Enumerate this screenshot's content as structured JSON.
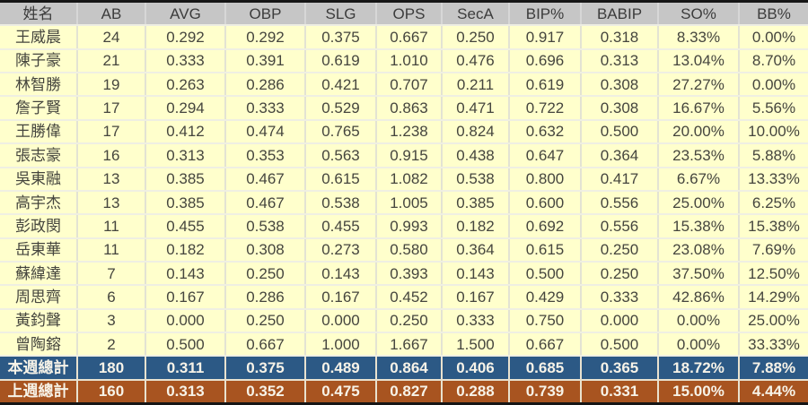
{
  "chart_data": {
    "type": "table",
    "columns": [
      "姓名",
      "AB",
      "AVG",
      "OBP",
      "SLG",
      "OPS",
      "SecA",
      "BIP%",
      "BABIP",
      "SO%",
      "BB%"
    ],
    "players": [
      {
        "name": "王威晨",
        "values": [
          "24",
          "0.292",
          "0.292",
          "0.375",
          "0.667",
          "0.250",
          "0.917",
          "0.318",
          "8.33%",
          "0.00%"
        ]
      },
      {
        "name": "陳子豪",
        "values": [
          "21",
          "0.333",
          "0.391",
          "0.619",
          "1.010",
          "0.476",
          "0.696",
          "0.313",
          "13.04%",
          "8.70%"
        ]
      },
      {
        "name": "林智勝",
        "values": [
          "19",
          "0.263",
          "0.286",
          "0.421",
          "0.707",
          "0.211",
          "0.619",
          "0.308",
          "27.27%",
          "0.00%"
        ]
      },
      {
        "name": "詹子賢",
        "values": [
          "17",
          "0.294",
          "0.333",
          "0.529",
          "0.863",
          "0.471",
          "0.722",
          "0.308",
          "16.67%",
          "5.56%"
        ]
      },
      {
        "name": "王勝偉",
        "values": [
          "17",
          "0.412",
          "0.474",
          "0.765",
          "1.238",
          "0.824",
          "0.632",
          "0.500",
          "20.00%",
          "10.00%"
        ]
      },
      {
        "name": "張志豪",
        "values": [
          "16",
          "0.313",
          "0.353",
          "0.563",
          "0.915",
          "0.438",
          "0.647",
          "0.364",
          "23.53%",
          "5.88%"
        ]
      },
      {
        "name": "吳東融",
        "values": [
          "13",
          "0.385",
          "0.467",
          "0.615",
          "1.082",
          "0.538",
          "0.800",
          "0.417",
          "6.67%",
          "13.33%"
        ]
      },
      {
        "name": "高宇杰",
        "values": [
          "13",
          "0.385",
          "0.467",
          "0.538",
          "1.005",
          "0.385",
          "0.600",
          "0.556",
          "25.00%",
          "6.25%"
        ]
      },
      {
        "name": "彭政閔",
        "values": [
          "11",
          "0.455",
          "0.538",
          "0.455",
          "0.993",
          "0.182",
          "0.692",
          "0.556",
          "15.38%",
          "15.38%"
        ]
      },
      {
        "name": "岳東華",
        "values": [
          "11",
          "0.182",
          "0.308",
          "0.273",
          "0.580",
          "0.364",
          "0.615",
          "0.250",
          "23.08%",
          "7.69%"
        ]
      },
      {
        "name": "蘇緯達",
        "values": [
          "7",
          "0.143",
          "0.250",
          "0.143",
          "0.393",
          "0.143",
          "0.500",
          "0.250",
          "37.50%",
          "12.50%"
        ]
      },
      {
        "name": "周思齊",
        "values": [
          "6",
          "0.167",
          "0.286",
          "0.167",
          "0.452",
          "0.167",
          "0.429",
          "0.333",
          "42.86%",
          "14.29%"
        ]
      },
      {
        "name": "黃鈞聲",
        "values": [
          "3",
          "0.000",
          "0.250",
          "0.000",
          "0.250",
          "0.333",
          "0.750",
          "0.000",
          "0.00%",
          "25.00%"
        ]
      },
      {
        "name": "曾陶鎔",
        "values": [
          "2",
          "0.500",
          "0.667",
          "1.000",
          "1.667",
          "1.500",
          "0.667",
          "0.500",
          "0.00%",
          "33.33%"
        ]
      }
    ],
    "totals": [
      {
        "label": "本週總計",
        "values": [
          "180",
          "0.311",
          "0.375",
          "0.489",
          "0.864",
          "0.406",
          "0.685",
          "0.365",
          "18.72%",
          "7.88%"
        ]
      },
      {
        "label": "上週總計",
        "values": [
          "160",
          "0.313",
          "0.352",
          "0.475",
          "0.827",
          "0.288",
          "0.739",
          "0.331",
          "15.00%",
          "4.44%"
        ]
      }
    ]
  },
  "colors": {
    "header_bg": "#C6C6C6",
    "header_text": "#3C3C3C",
    "row_bg": "#FFFFCC",
    "row_text": "#45453E",
    "this_week_total_bg": "#2C5985",
    "last_week_total_bg": "#A85420",
    "total_text": "#F7F3E8",
    "outer_border": "#161616"
  }
}
